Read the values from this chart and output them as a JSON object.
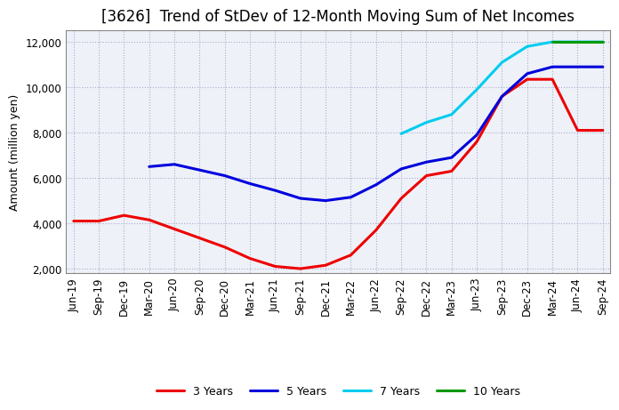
{
  "title": "[3626]  Trend of StDev of 12-Month Moving Sum of Net Incomes",
  "ylabel": "Amount (million yen)",
  "background_color": "#ffffff",
  "plot_bg_color": "#eef2f8",
  "grid_color": "#aaaacc",
  "x_labels": [
    "Jun-19",
    "Sep-19",
    "Dec-19",
    "Mar-20",
    "Jun-20",
    "Sep-20",
    "Dec-20",
    "Mar-21",
    "Jun-21",
    "Sep-21",
    "Dec-21",
    "Mar-22",
    "Jun-22",
    "Sep-22",
    "Dec-22",
    "Mar-23",
    "Jun-23",
    "Sep-23",
    "Dec-23",
    "Mar-24",
    "Jun-24",
    "Sep-24"
  ],
  "series_order": [
    "3 Years",
    "5 Years",
    "7 Years",
    "10 Years"
  ],
  "series": {
    "3 Years": {
      "color": "#ee0000",
      "data": [
        4100,
        4100,
        4350,
        4150,
        3750,
        3350,
        2950,
        2450,
        2100,
        2000,
        2150,
        2600,
        3700,
        5100,
        6100,
        6300,
        7600,
        9600,
        10350,
        10350,
        8100,
        8100
      ]
    },
    "5 Years": {
      "color": "#0000dd",
      "data": [
        null,
        null,
        null,
        6500,
        6600,
        6350,
        6100,
        5750,
        5450,
        5100,
        5000,
        5150,
        5700,
        6400,
        6700,
        6900,
        7900,
        9600,
        10600,
        10900,
        10900,
        10900
      ]
    },
    "7 Years": {
      "color": "#00ccee",
      "data": [
        null,
        null,
        null,
        null,
        null,
        null,
        null,
        null,
        null,
        null,
        null,
        null,
        null,
        7950,
        8450,
        8800,
        9900,
        11100,
        11800,
        12000,
        12000,
        12000
      ]
    },
    "10 Years": {
      "color": "#009900",
      "data": [
        null,
        null,
        null,
        null,
        null,
        null,
        null,
        null,
        null,
        null,
        null,
        null,
        null,
        null,
        null,
        null,
        null,
        null,
        null,
        12000,
        12000,
        12000
      ]
    }
  },
  "ylim": [
    1800,
    12500
  ],
  "yticks": [
    2000,
    4000,
    6000,
    8000,
    10000,
    12000
  ],
  "title_fontsize": 12,
  "axis_label_fontsize": 9,
  "tick_fontsize": 8.5,
  "legend_fontsize": 9,
  "linewidth": 2.2
}
